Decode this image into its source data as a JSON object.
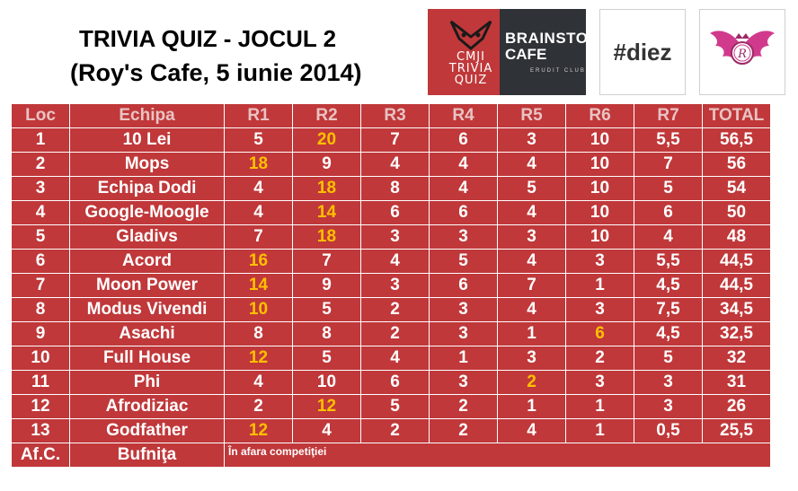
{
  "header": {
    "title_line1": "TRIVIA QUIZ - JOCUL 2",
    "title_line2": "(Roy's Cafe, 5 iunie 2014)"
  },
  "logos": {
    "cmji": {
      "line1": "CMJI",
      "line2": "TRIVIA",
      "line3": "QUIZ",
      "color": "#c0383a"
    },
    "brainstorm": {
      "line1": "BRAINSTORM",
      "line2": "CAFE",
      "line3": "ERUDIT CLUB",
      "color": "#2f3237"
    },
    "diez": {
      "text": "#diez"
    },
    "wings": {
      "letter": "R",
      "color": "#d13a8c"
    }
  },
  "table": {
    "columns": [
      "Loc",
      "Echipa",
      "R1",
      "R2",
      "R3",
      "R4",
      "R5",
      "R6",
      "R7",
      "TOTAL"
    ],
    "rows": [
      {
        "loc": "1",
        "team": "10 Lei",
        "r": [
          "5",
          "20",
          "7",
          "6",
          "3",
          "10",
          "5,5"
        ],
        "total": "56,5",
        "highlight": [
          1
        ]
      },
      {
        "loc": "2",
        "team": "Mops",
        "r": [
          "18",
          "9",
          "4",
          "4",
          "4",
          "10",
          "7"
        ],
        "total": "56",
        "highlight": [
          0
        ]
      },
      {
        "loc": "3",
        "team": "Echipa Dodi",
        "r": [
          "4",
          "18",
          "8",
          "4",
          "5",
          "10",
          "5"
        ],
        "total": "54",
        "highlight": [
          1
        ]
      },
      {
        "loc": "4",
        "team": "Google-Moogle",
        "r": [
          "4",
          "14",
          "6",
          "6",
          "4",
          "10",
          "6"
        ],
        "total": "50",
        "highlight": [
          1
        ]
      },
      {
        "loc": "5",
        "team": "Gladivs",
        "r": [
          "7",
          "18",
          "3",
          "3",
          "3",
          "10",
          "4"
        ],
        "total": "48",
        "highlight": [
          1
        ]
      },
      {
        "loc": "6",
        "team": "Acord",
        "r": [
          "16",
          "7",
          "4",
          "5",
          "4",
          "3",
          "5,5"
        ],
        "total": "44,5",
        "highlight": [
          0
        ]
      },
      {
        "loc": "7",
        "team": "Moon Power",
        "r": [
          "14",
          "9",
          "3",
          "6",
          "7",
          "1",
          "4,5"
        ],
        "total": "44,5",
        "highlight": [
          0
        ]
      },
      {
        "loc": "8",
        "team": "Modus Vivendi",
        "r": [
          "10",
          "5",
          "2",
          "3",
          "4",
          "3",
          "7,5"
        ],
        "total": "34,5",
        "highlight": [
          0
        ]
      },
      {
        "loc": "9",
        "team": "Asachi",
        "r": [
          "8",
          "8",
          "2",
          "3",
          "1",
          "6",
          "4,5"
        ],
        "total": "32,5",
        "highlight": [
          5
        ]
      },
      {
        "loc": "10",
        "team": "Full House",
        "r": [
          "12",
          "5",
          "4",
          "1",
          "3",
          "2",
          "5"
        ],
        "total": "32",
        "highlight": [
          0
        ]
      },
      {
        "loc": "11",
        "team": "Phi",
        "r": [
          "4",
          "10",
          "6",
          "3",
          "2",
          "3",
          "3"
        ],
        "total": "31",
        "highlight": [
          4
        ]
      },
      {
        "loc": "12",
        "team": "Afrodiziac",
        "r": [
          "2",
          "12",
          "5",
          "2",
          "1",
          "1",
          "3"
        ],
        "total": "26",
        "highlight": [
          1
        ]
      },
      {
        "loc": "13",
        "team": "Godfather",
        "r": [
          "12",
          "4",
          "2",
          "2",
          "4",
          "1",
          "0,5"
        ],
        "total": "25,5",
        "highlight": [
          0
        ]
      }
    ],
    "extra_row": {
      "loc": "Af.C.",
      "team": "Bufniţa",
      "note": "În afara competiţiei"
    },
    "colors": {
      "cell_bg": "#c0383a",
      "text": "#ffffff",
      "header_text": "#e9c3c3",
      "highlight": "#ffc000"
    }
  }
}
